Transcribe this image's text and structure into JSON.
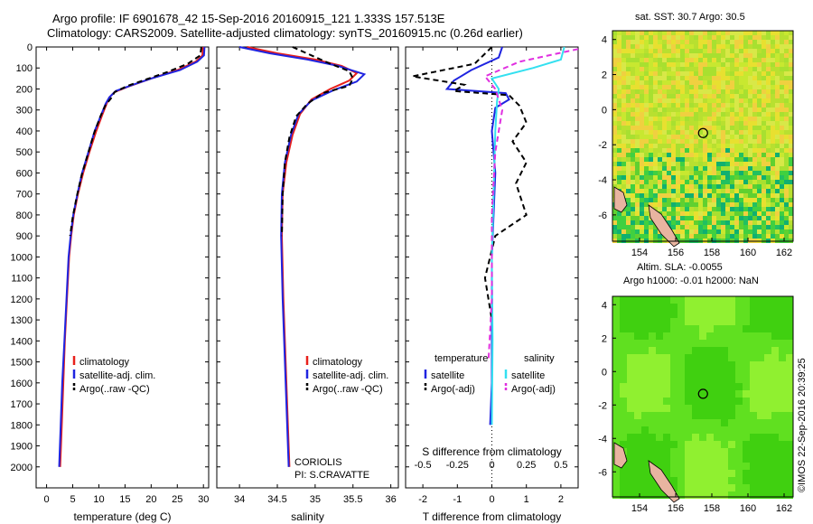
{
  "header": {
    "title_line1": "Argo profile: IF 6901678_42 15-Sep-2016 20160915_121 1.333S 157.513E",
    "title_line2": "Climatology: CARS2009. Satellite-adjusted climatology: synTS_20160915.nc (0.26d earlier)"
  },
  "stamp": "©IMOS 22-Sep-2016 20:39:25",
  "colors": {
    "climatology": "#e8201b",
    "satellite": "#1f24e0",
    "argo": "#000000",
    "sal_satellite": "#33e0f0",
    "sal_argo": "#e030e0",
    "land": "#e8b4a0"
  },
  "chart_data": [
    {
      "type": "line",
      "panel": "temperature",
      "xlabel": "temperature (deg C)",
      "ylabel": "",
      "xlim": [
        -2,
        31
      ],
      "ylim": [
        2100,
        0
      ],
      "xticks": [
        0,
        5,
        10,
        15,
        20,
        25,
        30
      ],
      "yticks": [
        0,
        100,
        200,
        300,
        400,
        500,
        600,
        700,
        800,
        900,
        1000,
        1100,
        1200,
        1300,
        1400,
        1500,
        1600,
        1700,
        1800,
        1900,
        2000
      ],
      "legend": [
        "climatology",
        "satellite-adj. clim.",
        "Argo(..raw -QC)"
      ],
      "legend_placement": "bottom-right",
      "series": [
        {
          "name": "climatology",
          "color": "#e8201b",
          "points": [
            [
              29.9,
              0
            ],
            [
              29.8,
              40
            ],
            [
              28.5,
              70
            ],
            [
              25,
              110
            ],
            [
              20,
              150
            ],
            [
              16,
              185
            ],
            [
              13,
              215
            ],
            [
              12,
              240
            ],
            [
              11.5,
              270
            ],
            [
              10.7,
              320
            ],
            [
              9.5,
              400
            ],
            [
              8.2,
              500
            ],
            [
              7.0,
              600
            ],
            [
              6.0,
              700
            ],
            [
              5.2,
              800
            ],
            [
              4.7,
              900
            ],
            [
              4.3,
              1000
            ],
            [
              3.9,
              1200
            ],
            [
              3.5,
              1400
            ],
            [
              3.2,
              1600
            ],
            [
              2.9,
              1800
            ],
            [
              2.6,
              2000
            ]
          ]
        },
        {
          "name": "satellite-adj. clim.",
          "color": "#1f24e0",
          "points": [
            [
              30.2,
              0
            ],
            [
              30.1,
              40
            ],
            [
              28.8,
              70
            ],
            [
              25.5,
              110
            ],
            [
              20,
              150
            ],
            [
              16.5,
              180
            ],
            [
              13.2,
              210
            ],
            [
              12,
              240
            ],
            [
              11.3,
              270
            ],
            [
              10.5,
              320
            ],
            [
              9.2,
              400
            ],
            [
              8.0,
              500
            ],
            [
              6.8,
              600
            ],
            [
              5.9,
              700
            ],
            [
              5.1,
              800
            ],
            [
              4.6,
              900
            ],
            [
              4.2,
              1000
            ],
            [
              3.8,
              1200
            ],
            [
              3.4,
              1400
            ],
            [
              3.0,
              1600
            ],
            [
              2.7,
              1800
            ],
            [
              2.4,
              2000
            ]
          ]
        },
        {
          "name": "Argo(..raw -QC)",
          "color": "#000000",
          "dashed": true,
          "points": [
            [
              29.6,
              0
            ],
            [
              29.4,
              40
            ],
            [
              27,
              80
            ],
            [
              23,
              120
            ],
            [
              19,
              155
            ],
            [
              15.5,
              185
            ],
            [
              13,
              215
            ],
            [
              12.3,
              245
            ],
            [
              11.2,
              280
            ],
            [
              10.3,
              330
            ],
            [
              9.1,
              410
            ],
            [
              7.9,
              510
            ],
            [
              6.7,
              610
            ],
            [
              5.8,
              710
            ],
            [
              5.0,
              810
            ],
            [
              4.5,
              900
            ]
          ]
        }
      ]
    },
    {
      "type": "line",
      "panel": "salinity",
      "xlabel": "salinity",
      "ylabel": "",
      "xlim": [
        33.7,
        36.1
      ],
      "ylim": [
        2100,
        0
      ],
      "xticks": [
        34,
        34.5,
        35,
        35.5,
        36
      ],
      "legend": [
        "climatology",
        "satellite-adj. clim.",
        "Argo(..raw -QC)"
      ],
      "legend_placement": "bottom-right",
      "annotation": [
        "CORIOLIS",
        "PI: S.CRAVATTE"
      ],
      "series": [
        {
          "name": "climatology",
          "color": "#e8201b",
          "points": [
            [
              34.1,
              0
            ],
            [
              34.5,
              30
            ],
            [
              35.0,
              60
            ],
            [
              35.35,
              90
            ],
            [
              35.55,
              125
            ],
            [
              35.45,
              160
            ],
            [
              35.2,
              200
            ],
            [
              34.95,
              250
            ],
            [
              34.8,
              320
            ],
            [
              34.7,
              420
            ],
            [
              34.62,
              550
            ],
            [
              34.57,
              700
            ],
            [
              34.56,
              900
            ],
            [
              34.58,
              1200
            ],
            [
              34.61,
              1500
            ],
            [
              34.64,
              1800
            ],
            [
              34.66,
              2000
            ]
          ]
        },
        {
          "name": "satellite-adj. clim.",
          "color": "#1f24e0",
          "points": [
            [
              34.0,
              0
            ],
            [
              34.4,
              30
            ],
            [
              34.9,
              60
            ],
            [
              35.3,
              90
            ],
            [
              35.65,
              130
            ],
            [
              35.55,
              165
            ],
            [
              35.25,
              205
            ],
            [
              34.95,
              255
            ],
            [
              34.78,
              320
            ],
            [
              34.68,
              420
            ],
            [
              34.6,
              550
            ],
            [
              34.56,
              700
            ],
            [
              34.55,
              900
            ],
            [
              34.57,
              1200
            ],
            [
              34.6,
              1500
            ],
            [
              34.63,
              1800
            ],
            [
              34.65,
              2000
            ]
          ]
        },
        {
          "name": "Argo(..raw -QC)",
          "color": "#000000",
          "dashed": true,
          "points": [
            [
              34.7,
              0
            ],
            [
              34.95,
              40
            ],
            [
              35.2,
              80
            ],
            [
              35.45,
              115
            ],
            [
              35.5,
              150
            ],
            [
              35.45,
              185
            ],
            [
              35.1,
              220
            ],
            [
              34.9,
              270
            ],
            [
              34.75,
              330
            ],
            [
              34.66,
              430
            ],
            [
              34.6,
              550
            ],
            [
              34.57,
              700
            ],
            [
              34.56,
              900
            ]
          ]
        }
      ]
    },
    {
      "type": "line",
      "panel": "differences",
      "xlabel": "T difference from climatology",
      "x2label": "S difference from climatology",
      "xlim": [
        -2.5,
        2.5
      ],
      "ylim": [
        2100,
        0
      ],
      "xticks": [
        -2,
        -1,
        0,
        1,
        2
      ],
      "x2ticks": [
        "-0.5",
        "-0.25",
        "0",
        "0.25",
        "0.5"
      ],
      "legend": [
        {
          "group": "temperature",
          "items": [
            "satellite",
            "Argo(-adj)"
          ]
        },
        {
          "group": "salinity",
          "items": [
            "satellite",
            "Argo(-adj)"
          ]
        }
      ],
      "legend_placement": "bottom",
      "series": [
        {
          "name": "temperature satellite",
          "color": "#1f24e0",
          "points": [
            [
              0.3,
              0
            ],
            [
              0.2,
              50
            ],
            [
              -0.6,
              110
            ],
            [
              -1.1,
              160
            ],
            [
              -1.3,
              200
            ],
            [
              0.4,
              220
            ],
            [
              0.5,
              250
            ],
            [
              0.1,
              290
            ],
            [
              0.0,
              400
            ],
            [
              0.1,
              600
            ],
            [
              0.05,
              800
            ],
            [
              0.0,
              1000
            ],
            [
              0.0,
              1200
            ],
            [
              0.0,
              1400
            ],
            [
              0.0,
              1600
            ],
            [
              -0.05,
              1800
            ]
          ]
        },
        {
          "name": "temperature Argo(-adj)",
          "color": "#000000",
          "dashed": true,
          "points": [
            [
              0,
              0
            ],
            [
              -0.5,
              80
            ],
            [
              -2.3,
              140
            ],
            [
              -0.8,
              180
            ],
            [
              -1.1,
              210
            ],
            [
              0.5,
              230
            ],
            [
              0.8,
              280
            ],
            [
              1.0,
              360
            ],
            [
              0.6,
              450
            ],
            [
              1.0,
              550
            ],
            [
              0.7,
              650
            ],
            [
              1.0,
              800
            ],
            [
              0.1,
              900
            ],
            [
              -0.2,
              1100
            ],
            [
              0.0,
              1300
            ]
          ]
        },
        {
          "name": "salinity satellite",
          "color": "#33e0f0",
          "points": [
            [
              2.1,
              0
            ],
            [
              2.0,
              60
            ],
            [
              1.2,
              100
            ],
            [
              0.0,
              150
            ],
            [
              0.2,
              200
            ],
            [
              0.15,
              260
            ],
            [
              0.1,
              400
            ],
            [
              0.05,
              700
            ],
            [
              0.0,
              1000
            ],
            [
              0.02,
              1400
            ],
            [
              0.0,
              1800
            ]
          ]
        },
        {
          "name": "salinity Argo(-adj)",
          "color": "#e030e0",
          "dashed": true,
          "points": [
            [
              2.5,
              10
            ],
            [
              0.8,
              70
            ],
            [
              -0.2,
              140
            ],
            [
              0.1,
              200
            ],
            [
              0.3,
              300
            ],
            [
              0.1,
              500
            ],
            [
              0.0,
              800
            ],
            [
              0.0,
              1200
            ],
            [
              -0.1,
              1500
            ]
          ]
        }
      ]
    },
    {
      "type": "heatmap",
      "panel": "sst-map",
      "title": "sat. SST: 30.7  Argo: 30.5",
      "xlim": [
        152.5,
        162.5
      ],
      "ylim": [
        -7.5,
        4.5
      ],
      "xticks": [
        154,
        156,
        158,
        160,
        162
      ],
      "yticks": [
        4,
        2,
        0,
        -2,
        -4,
        -6
      ],
      "marker": {
        "lon": 157.513,
        "lat": -1.333
      }
    },
    {
      "type": "heatmap",
      "panel": "sla-map",
      "title": "Altim. SLA: -0.0055",
      "subtitle": "Argo h1000: -0.01 h2000: NaN",
      "xlim": [
        152.5,
        162.5
      ],
      "ylim": [
        -7.5,
        4.5
      ],
      "xticks": [
        154,
        156,
        158,
        160,
        162
      ],
      "yticks": [
        4,
        2,
        0,
        -2,
        -4,
        -6
      ],
      "marker": {
        "lon": 157.513,
        "lat": -1.333
      }
    }
  ]
}
